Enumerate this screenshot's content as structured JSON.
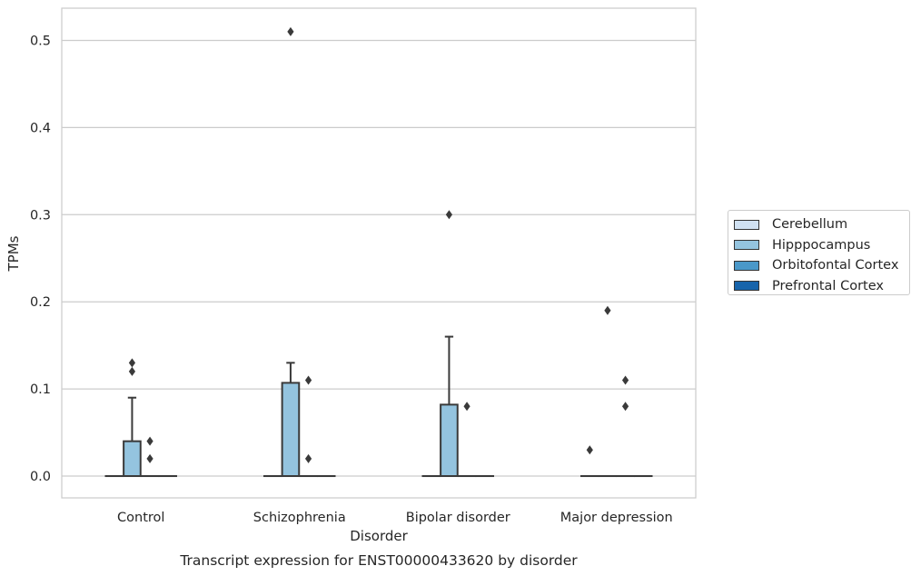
{
  "chart_data": {
    "type": "box",
    "xlabel": "Disorder",
    "ylabel": "TPMs",
    "caption": "Transcript expression for ENST00000433620 by disorder",
    "ylim": [
      -0.025,
      0.537
    ],
    "yticks": [
      {
        "value": 0.0,
        "label": "0.0"
      },
      {
        "value": 0.1,
        "label": "0.1"
      },
      {
        "value": 0.2,
        "label": "0.2"
      },
      {
        "value": 0.3,
        "label": "0.3"
      },
      {
        "value": 0.4,
        "label": "0.4"
      },
      {
        "value": 0.5,
        "label": "0.5"
      }
    ],
    "categories": [
      "Control",
      "Schizophrenia",
      "Bipolar disorder",
      "Major depression"
    ],
    "grid": true,
    "legend_position": "right",
    "series": [
      {
        "name": "Cerebellum",
        "color": "#d0e1f2",
        "boxes": [
          {
            "q1": 0,
            "median": 0,
            "q3": 0,
            "whisker_low": 0,
            "whisker_high": 0,
            "outliers": []
          },
          {
            "q1": 0,
            "median": 0,
            "q3": 0,
            "whisker_low": 0,
            "whisker_high": 0,
            "outliers": []
          },
          {
            "q1": 0,
            "median": 0,
            "q3": 0,
            "whisker_low": 0,
            "whisker_high": 0,
            "outliers": []
          },
          {
            "q1": 0,
            "median": 0,
            "q3": 0,
            "whisker_low": 0,
            "whisker_high": 0,
            "outliers": [
              0.03
            ]
          }
        ]
      },
      {
        "name": "Hipppocampus",
        "color": "#94c4df",
        "boxes": [
          {
            "q1": 0,
            "median": 0,
            "q3": 0.04,
            "whisker_low": 0,
            "whisker_high": 0.09,
            "outliers": [
              0.12,
              0.13
            ]
          },
          {
            "q1": 0,
            "median": 0,
            "q3": 0.107,
            "whisker_low": 0,
            "whisker_high": 0.13,
            "outliers": [
              0.51
            ]
          },
          {
            "q1": 0,
            "median": 0,
            "q3": 0.082,
            "whisker_low": 0,
            "whisker_high": 0.16,
            "outliers": [
              0.3
            ]
          },
          {
            "q1": 0,
            "median": 0,
            "q3": 0,
            "whisker_low": 0,
            "whisker_high": 0,
            "outliers": [
              0.19
            ]
          }
        ]
      },
      {
        "name": "Orbitofontal Cortex",
        "color": "#4a98c9",
        "boxes": [
          {
            "q1": 0,
            "median": 0,
            "q3": 0,
            "whisker_low": 0,
            "whisker_high": 0,
            "outliers": [
              0.02,
              0.04
            ]
          },
          {
            "q1": 0,
            "median": 0,
            "q3": 0,
            "whisker_low": 0,
            "whisker_high": 0,
            "outliers": [
              0.02,
              0.11
            ]
          },
          {
            "q1": 0,
            "median": 0,
            "q3": 0,
            "whisker_low": 0,
            "whisker_high": 0,
            "outliers": [
              0.08
            ]
          },
          {
            "q1": 0,
            "median": 0,
            "q3": 0,
            "whisker_low": 0,
            "whisker_high": 0,
            "outliers": [
              0.08,
              0.11
            ]
          }
        ]
      },
      {
        "name": "Prefrontal Cortex",
        "color": "#1764ab",
        "boxes": [
          {
            "q1": 0,
            "median": 0,
            "q3": 0,
            "whisker_low": 0,
            "whisker_high": 0,
            "outliers": []
          },
          {
            "q1": 0,
            "median": 0,
            "q3": 0,
            "whisker_low": 0,
            "whisker_high": 0,
            "outliers": []
          },
          {
            "q1": 0,
            "median": 0,
            "q3": 0,
            "whisker_low": 0,
            "whisker_high": 0,
            "outliers": []
          },
          {
            "q1": 0,
            "median": 0,
            "q3": 0,
            "whisker_low": 0,
            "whisker_high": 0,
            "outliers": []
          }
        ]
      }
    ]
  }
}
